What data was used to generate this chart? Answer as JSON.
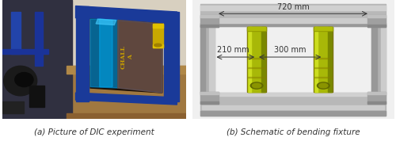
{
  "figsize": [
    5.0,
    1.83
  ],
  "dpi": 100,
  "left_caption": "(a) Picture of DIC experiment",
  "right_caption": "(b) Schematic of bending fixture",
  "caption_fontsize": 7.5,
  "caption_color": "#333333",
  "bg_color": "#ffffff",
  "schematic": {
    "dim_720_text": "720 mm",
    "dim_210_text": "210 mm",
    "dim_300_text": "300 mm",
    "dim_fontsize": 7.0
  }
}
